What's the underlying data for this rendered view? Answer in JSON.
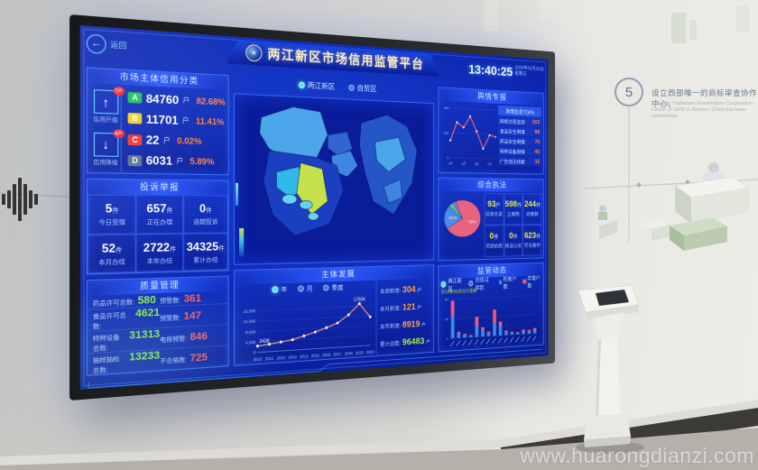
{
  "watermark": "www.huarongdianzi.com",
  "colors": {
    "percent": "#ff8447",
    "good": "#8df03c",
    "alert": "#ff5c5c",
    "yellow": "#e8ee3e"
  },
  "wall": {
    "step_number": "5",
    "step_title_zh": "设立西部唯一的商标审查协作中心。",
    "step_title_en": "The only Trademark Examination Cooperation Center of SIPO in Western China has been established."
  },
  "screen": {
    "back_label": "返回",
    "header": {
      "title": "两江新区市场信用监管平台",
      "time": "13:40:25",
      "date": "2020年03月20日",
      "weekday": "星期五"
    },
    "region_tabs": [
      {
        "label": "两江新区",
        "selected": true
      },
      {
        "label": "自贸区",
        "selected": false
      }
    ],
    "credit_panel": {
      "title": "市场主体信用分类",
      "upgrade": {
        "label": "信用升级",
        "badge": "7户",
        "arrow": "↑"
      },
      "downgrade": {
        "label": "信用降级",
        "badge": "4户",
        "arrow": "↓"
      },
      "rows": [
        {
          "grade": "A",
          "color": "#1ec45c",
          "count": "84760",
          "unit": "户",
          "pct": "82.68%"
        },
        {
          "grade": "B",
          "color": "#f0cf22",
          "count": "11701",
          "unit": "户",
          "pct": "11.41%"
        },
        {
          "grade": "C",
          "color": "#ee3a3a",
          "count": "22",
          "unit": "户",
          "pct": "0.02%"
        },
        {
          "grade": "D",
          "color": "#5f7390",
          "count": "6031",
          "unit": "户",
          "pct": "5.89%"
        }
      ]
    },
    "complaints_panel": {
      "title": "投诉举报",
      "cells": [
        {
          "value": "5",
          "unit": "件",
          "label": "今日受理"
        },
        {
          "value": "657",
          "unit": "件",
          "label": "正在办理"
        },
        {
          "value": "0",
          "unit": "件",
          "label": "逾期投诉"
        },
        {
          "value": "52",
          "unit": "件",
          "label": "本月办结"
        },
        {
          "value": "2722",
          "unit": "件",
          "label": "本年办结"
        },
        {
          "value": "34325",
          "unit": "件",
          "label": "累计办结"
        }
      ]
    },
    "quality_panel": {
      "title": "质量管理",
      "rows": [
        {
          "left_label": "药品许可总数:",
          "left_value": "580",
          "right_label": "预警数:",
          "right_value": "361"
        },
        {
          "left_label": "食品许可总数:",
          "left_value": "4621",
          "right_label": "预警数:",
          "right_value": "147"
        },
        {
          "left_label": "特种设备总数:",
          "left_value": "31313",
          "right_label": "电梯预警:",
          "right_value": "846"
        },
        {
          "left_label": "抽样抽检总数:",
          "left_value": "13233",
          "right_label": "不合格数:",
          "right_value": "725"
        }
      ]
    },
    "development_panel": {
      "title": "主体发展",
      "modes": [
        {
          "label": "年",
          "selected": true
        },
        {
          "label": "月",
          "selected": false
        },
        {
          "label": "季度",
          "selected": false
        }
      ],
      "stats": [
        {
          "label": "本周新增:",
          "value": "304",
          "unit": "户",
          "color": "#ffa040"
        },
        {
          "label": "本月新增:",
          "value": "121",
          "unit": "户",
          "color": "#ffa040"
        },
        {
          "label": "本年新增:",
          "value": "8919",
          "unit": "户",
          "color": "#ffa040"
        },
        {
          "label": "累计总数:",
          "value": "96483",
          "unit": "户",
          "color": "#9df04a"
        }
      ]
    },
    "sentiment_panel": {
      "title": "舆情专报",
      "list_header": "舆情信息TOP5",
      "items": [
        {
          "text": "网络交易监测",
          "value": "162"
        },
        {
          "text": "食品安全舆情",
          "value": "98"
        },
        {
          "text": "药品安全舆情",
          "value": "76"
        },
        {
          "text": "特种设备舆情",
          "value": "45"
        },
        {
          "text": "广告违法线索",
          "value": "32"
        }
      ]
    },
    "enforcement_panel": {
      "title": "综合执法",
      "cells": [
        {
          "value": "93",
          "unit": "户",
          "label": "异常名录"
        },
        {
          "value": "598",
          "unit": "件",
          "label": "立案数"
        },
        {
          "value": "244",
          "unit": "件",
          "label": "结案数"
        },
        {
          "value": "0",
          "unit": "件",
          "label": "吊销执照"
        },
        {
          "value": "0",
          "unit": "件",
          "label": "移送公安"
        },
        {
          "value": "623",
          "unit": "件",
          "label": "罚没案件"
        }
      ]
    },
    "supervision_panel": {
      "title": "监管动态",
      "caption": "2019年03月02日更新",
      "tabs": [
        {
          "label": "两江新区",
          "selected": true
        },
        {
          "label": "自贸试验区",
          "selected": false
        }
      ]
    }
  },
  "chart_data": [
    {
      "id": "development",
      "type": "line",
      "title": "主体发展",
      "x": [
        "2010",
        "2011",
        "2012",
        "2013",
        "2014",
        "2015",
        "2016",
        "2017",
        "2018",
        "2019",
        "2020"
      ],
      "values": [
        2438,
        2900,
        3450,
        4100,
        5300,
        6600,
        8100,
        9700,
        12800,
        17034,
        11500
      ],
      "ylim": [
        0,
        18000
      ],
      "yticks": [
        0,
        4000,
        8000,
        12000,
        16000
      ],
      "ytick_labels": [
        "0",
        "4,000",
        "8,000",
        "12,000",
        "16,000"
      ],
      "point_labels": {
        "first": "2438",
        "peak": "17034"
      },
      "line_color": "#e8907a",
      "legend": [
        "年",
        "月",
        "季度"
      ],
      "legend_position": "top"
    },
    {
      "id": "sentiment",
      "type": "line",
      "x": [
        "1月",
        "2月",
        "3月",
        "4月",
        "5月",
        "6月",
        "7月",
        "8月"
      ],
      "values": [
        105,
        216,
        186,
        255,
        165,
        60,
        144,
        135
      ],
      "ylim": [
        0,
        300
      ],
      "line_color": "#ff6a6a"
    },
    {
      "id": "enforcement_pie",
      "type": "pie",
      "slices": [
        {
          "label": "处罚案件",
          "value": 72,
          "color": "#e8647e"
        },
        {
          "label": "立案",
          "value": 21,
          "color": "#4a8ae8"
        },
        {
          "label": "结案",
          "value": 4,
          "color": "#52c878"
        },
        {
          "label": "其他",
          "value": 3,
          "color": "#9a6ae0"
        }
      ]
    },
    {
      "id": "supervision",
      "type": "stacked-bar",
      "ylim": [
        0,
        50
      ],
      "series": [
        {
          "name": "检查户数",
          "color": "#3a8ae8",
          "values": [
            28,
            6,
            4,
            2,
            14,
            8,
            4,
            16,
            12,
            4,
            3,
            2,
            4,
            3,
            4
          ]
        },
        {
          "name": "异常户数",
          "color": "#f05a78",
          "values": [
            20,
            2,
            1,
            1,
            12,
            4,
            2,
            18,
            6,
            2,
            1,
            1,
            2,
            2,
            3
          ]
        }
      ]
    }
  ]
}
